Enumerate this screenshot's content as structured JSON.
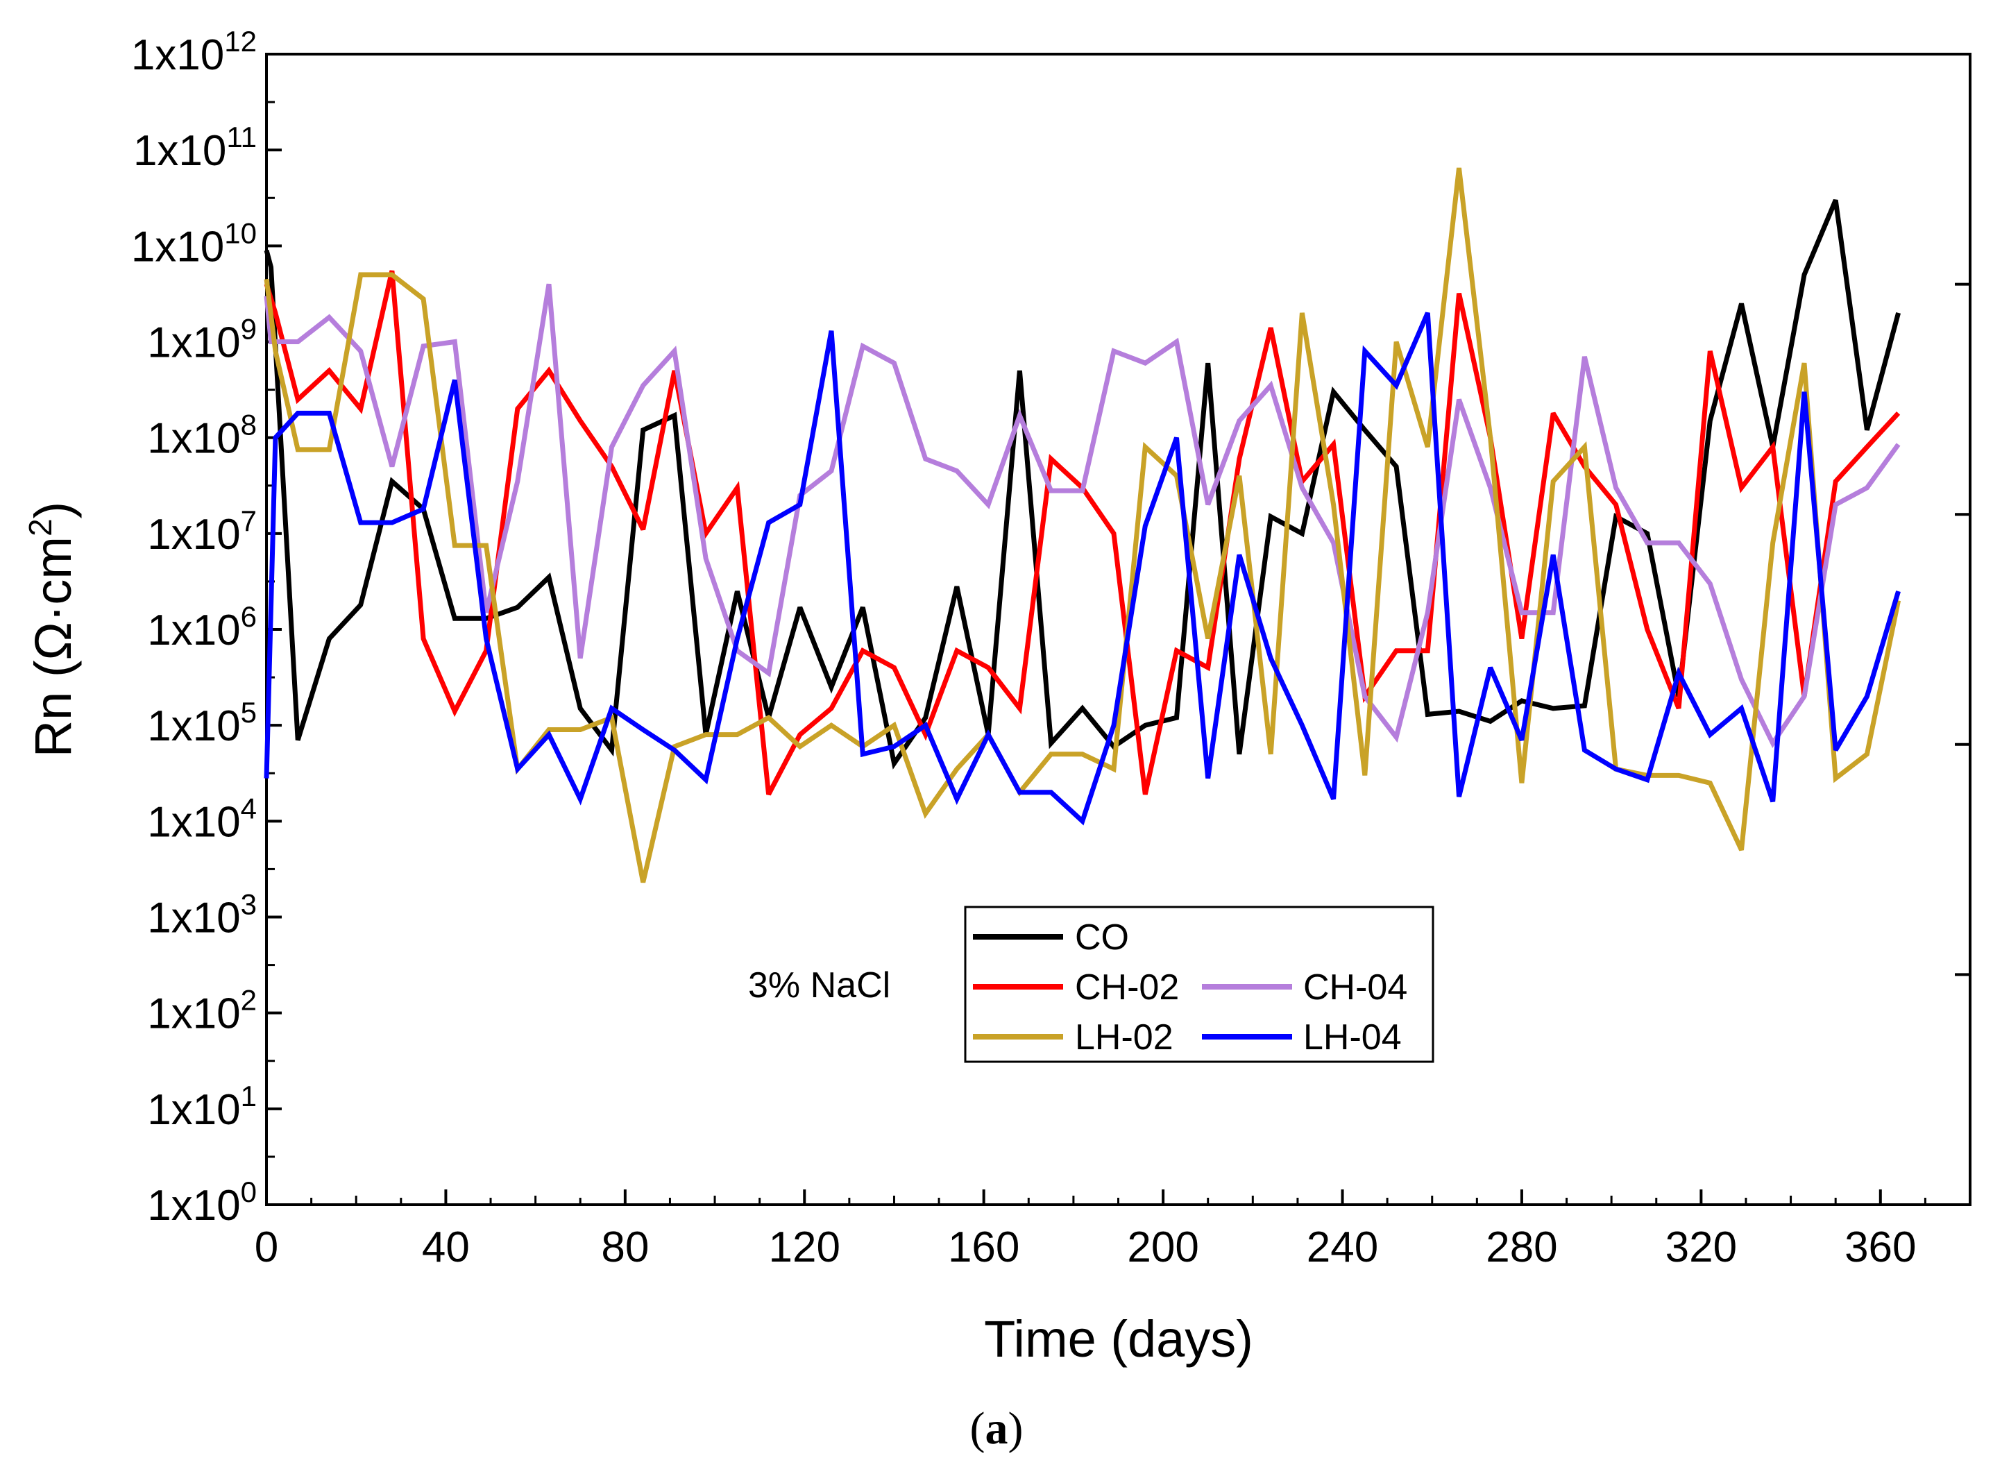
{
  "chart_data": {
    "type": "line",
    "ylabel_prefix": "Rn (Ω·cm",
    "ylabel_sup": "2",
    "ylabel_suffix": ")",
    "xlabel": "Time (days)",
    "yscale": "log",
    "ylim_exp": [
      0,
      12
    ],
    "xlim": [
      0,
      380
    ],
    "xticks": [
      "0",
      "40",
      "80",
      "120",
      "160",
      "200",
      "240",
      "280",
      "320",
      "360"
    ],
    "xtick_values": [
      0,
      40,
      80,
      120,
      160,
      200,
      240,
      280,
      320,
      360
    ],
    "ytick_base": "1x10",
    "ytick_exponents": [
      "0",
      "1",
      "2",
      "3",
      "4",
      "5",
      "6",
      "7",
      "8",
      "9",
      "10",
      "11",
      "12"
    ],
    "annotation": "3% NaCl",
    "caption_open": "(",
    "caption_letter": "a",
    "caption_close": ")",
    "series": [
      {
        "name": "CO",
        "color": "#000000",
        "x": [
          0,
          1,
          7,
          14,
          21,
          28,
          35,
          42,
          49,
          56,
          63,
          70,
          77,
          84,
          91,
          98,
          105,
          112,
          119,
          126,
          133,
          140,
          147,
          154,
          161,
          168,
          175,
          182,
          189,
          196,
          203,
          210,
          217,
          224,
          231,
          238,
          245,
          252,
          259,
          266,
          273,
          280,
          287,
          294,
          301,
          308,
          315,
          322,
          329,
          336,
          343,
          350,
          357,
          364
        ],
        "y": [
          9000000000.0,
          6000000000.0,
          70000.0,
          800000.0,
          1800000.0,
          35000000.0,
          18000000.0,
          1300000.0,
          1300000.0,
          1700000.0,
          3500000.0,
          150000.0,
          55000.0,
          120000000.0,
          170000000.0,
          80000.0,
          2500000.0,
          120000.0,
          1700000.0,
          250000.0,
          1700000.0,
          40000.0,
          120000.0,
          2800000.0,
          80000.0,
          500000000.0,
          65000.0,
          150000.0,
          60000.0,
          100000.0,
          120000.0,
          600000000.0,
          50000.0,
          15000000.0,
          10000000.0,
          300000000.0,
          120000000.0,
          50000000.0,
          130000.0,
          140000.0,
          110000.0,
          180000.0,
          150000.0,
          160000.0,
          15000000.0,
          10000000.0,
          200000.0,
          150000000.0,
          2500000000.0,
          80000000.0,
          5000000000.0,
          30000000000.0,
          120000000.0,
          2000000000.0
        ]
      },
      {
        "name": "CH-02",
        "color": "#ff0000",
        "x": [
          0,
          2,
          7,
          14,
          21,
          28,
          35,
          42,
          49,
          56,
          63,
          70,
          77,
          84,
          91,
          98,
          105,
          112,
          119,
          126,
          133,
          140,
          147,
          154,
          161,
          168,
          175,
          182,
          189,
          196,
          203,
          210,
          217,
          224,
          231,
          238,
          245,
          252,
          259,
          266,
          273,
          280,
          287,
          294,
          301,
          308,
          315,
          322,
          329,
          336,
          343,
          350,
          357,
          364
        ],
        "y": [
          4000000000.0,
          2000000000.0,
          250000000.0,
          500000000.0,
          200000000.0,
          5500000000.0,
          800000.0,
          140000.0,
          600000.0,
          200000000.0,
          500000000.0,
          150000000.0,
          50000000.0,
          11000000.0,
          500000000.0,
          10000000.0,
          30000000.0,
          19000.0,
          80000.0,
          150000.0,
          600000.0,
          400000.0,
          80000.0,
          600000.0,
          400000.0,
          150000.0,
          60000000.0,
          30000000.0,
          10000000.0,
          19000.0,
          600000.0,
          400000.0,
          60000000.0,
          1400000000.0,
          35000000.0,
          85000000.0,
          200000.0,
          600000.0,
          600000.0,
          3200000000.0,
          100000000.0,
          800000.0,
          180000000.0,
          50000000.0,
          20000000.0,
          1000000.0,
          150000.0,
          800000000.0,
          30000000.0,
          80000000.0,
          200000.0,
          35000000.0,
          80000000.0,
          180000000.0
        ]
      },
      {
        "name": "CH-04",
        "color": "#b57edc",
        "x": [
          0,
          1,
          7,
          14,
          21,
          28,
          35,
          42,
          49,
          56,
          63,
          70,
          77,
          84,
          91,
          98,
          105,
          112,
          119,
          126,
          133,
          140,
          147,
          154,
          161,
          168,
          175,
          182,
          189,
          196,
          203,
          210,
          217,
          224,
          231,
          238,
          245,
          252,
          259,
          266,
          273,
          280,
          287,
          294,
          301,
          308,
          315,
          322,
          329,
          336,
          343,
          350,
          357,
          364
        ],
        "y": [
          3000000000.0,
          1000000000.0,
          1000000000.0,
          1800000000.0,
          800000000.0,
          50000000.0,
          900000000.0,
          1000000000.0,
          1500000.0,
          35000000.0,
          4000000000.0,
          500000.0,
          80000000.0,
          350000000.0,
          800000000.0,
          5500000.0,
          600000.0,
          350000.0,
          25000000.0,
          45000000.0,
          900000000.0,
          600000000.0,
          60000000.0,
          45000000.0,
          20000000.0,
          170000000.0,
          28000000.0,
          28000000.0,
          800000000.0,
          600000000.0,
          1000000000.0,
          20000000.0,
          150000000.0,
          350000000.0,
          30000000.0,
          8000000.0,
          200000.0,
          75000.0,
          1500000.0,
          250000000.0,
          30000000.0,
          1500000.0,
          1500000.0,
          700000000.0,
          30000000.0,
          8000000.0,
          8000000.0,
          3000000.0,
          300000.0,
          65000.0,
          200000.0,
          20000000.0,
          30000000.0,
          85000000.0
        ]
      },
      {
        "name": "LH-02",
        "color": "#c9a227",
        "x": [
          0,
          2,
          7,
          14,
          21,
          28,
          35,
          42,
          49,
          56,
          63,
          70,
          77,
          84,
          91,
          98,
          105,
          112,
          119,
          126,
          133,
          140,
          147,
          154,
          161,
          168,
          175,
          182,
          189,
          196,
          203,
          210,
          217,
          224,
          231,
          238,
          245,
          252,
          259,
          266,
          273,
          280,
          287,
          294,
          301,
          308,
          315,
          322,
          329,
          336,
          343,
          350,
          357,
          364
        ],
        "y": [
          4500000000.0,
          800000000.0,
          75000000.0,
          75000000.0,
          5000000000.0,
          5000000000.0,
          2800000000.0,
          7500000.0,
          7500000.0,
          35000.0,
          90000.0,
          90000.0,
          120000.0,
          2300.0,
          60000.0,
          80000.0,
          80000.0,
          120000.0,
          60000.0,
          100000.0,
          60000.0,
          100000.0,
          12000.0,
          35000.0,
          80000.0,
          20000.0,
          50000.0,
          50000.0,
          35000.0,
          80000000.0,
          40000000.0,
          800000.0,
          40000000.0,
          50000.0,
          2000000000.0,
          20000000.0,
          30000.0,
          1000000000.0,
          80000000.0,
          65000000000.0,
          100000000.0,
          25000.0,
          35000000.0,
          80000000.0,
          35000.0,
          30000.0,
          30000.0,
          25000.0,
          5000.0,
          8000000.0,
          600000000.0,
          28000.0,
          50000.0,
          2000000.0
        ]
      },
      {
        "name": "LH-04",
        "color": "#0000ff",
        "x": [
          0,
          2,
          7,
          14,
          21,
          28,
          35,
          42,
          49,
          56,
          63,
          70,
          77,
          84,
          91,
          98,
          105,
          112,
          119,
          126,
          133,
          140,
          147,
          154,
          161,
          168,
          175,
          182,
          189,
          196,
          203,
          210,
          217,
          224,
          231,
          238,
          245,
          252,
          259,
          266,
          273,
          280,
          287,
          294,
          301,
          308,
          315,
          322,
          329,
          336,
          343,
          350,
          357,
          364
        ],
        "y": [
          28000.0,
          100000000.0,
          180000000.0,
          180000000.0,
          13000000.0,
          13000000.0,
          18000000.0,
          400000000.0,
          800000.0,
          35000.0,
          80000.0,
          17000.0,
          150000.0,
          90000.0,
          55000.0,
          27000.0,
          800000.0,
          13000000.0,
          20000000.0,
          1300000000.0,
          50000.0,
          60000.0,
          100000.0,
          17000.0,
          80000.0,
          20000.0,
          20000.0,
          10000.0,
          100000.0,
          12000000.0,
          100000000.0,
          28000.0,
          6000000.0,
          500000.0,
          100000.0,
          17000.0,
          800000000.0,
          350000000.0,
          2000000000.0,
          18000.0,
          400000.0,
          70000.0,
          6000000.0,
          55000.0,
          35000.0,
          27000.0,
          350000.0,
          80000.0,
          150000.0,
          16000.0,
          300000000.0,
          55000.0,
          200000.0,
          2500000.0
        ]
      }
    ],
    "legend": {
      "row1": [
        "CO"
      ],
      "row2": [
        "CH-02",
        "CH-04"
      ],
      "row3": [
        "LH-02",
        "LH-04"
      ]
    }
  }
}
